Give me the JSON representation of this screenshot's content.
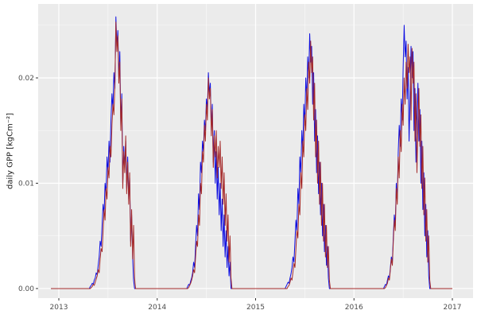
{
  "figure": {
    "background": "#FFFFFF",
    "panel_background": "#EBEBEB",
    "gridline_color": "#FFFFFF",
    "tick_color": "#333333",
    "tick_label_color": "#4D4D4D",
    "axis_title_color": "#1A1A1A"
  },
  "chart_data": {
    "type": "line",
    "title": "",
    "xlabel": "",
    "ylabel": "daily GPP [kgCm⁻²]",
    "legend": "none",
    "grid": true,
    "x_ticks": [
      2013,
      2014,
      2015,
      2016,
      2017
    ],
    "x_tick_labels": [
      "2013",
      "2014",
      "2015",
      "2016",
      "2017"
    ],
    "x_minor_ticks": [
      2013.5,
      2014.5,
      2015.5,
      2016.5
    ],
    "y_ticks": [
      0,
      0.01,
      0.02
    ],
    "y_tick_labels": [
      "0.00",
      "0.01",
      "0.02"
    ],
    "y_minor_ticks": [
      0.005,
      0.015,
      0.025
    ],
    "xlim": [
      2012.79,
      2017.21
    ],
    "ylim": [
      -0.00091,
      0.02702
    ],
    "x_unit": "year",
    "baseline_value": 0,
    "data_x_start": 2012.92,
    "data_x_end": 2017.0,
    "value_scale": 0.0001,
    "series": [
      {
        "name": "blue",
        "color": "#0F0FE0",
        "seasons": [
          {
            "x0": 2013.32,
            "dx": 0.01,
            "values": [
              2,
              3,
              5,
              4,
              8,
              10,
              15,
              13,
              22,
              30,
              45,
              40,
              60,
              80,
              70,
              100,
              90,
              125,
              110,
              140,
              120,
              160,
              185,
              170,
              205,
              190,
              258,
              230,
              245,
              200,
              225,
              155,
              185,
              100,
              135,
              115,
              140,
              95,
              125,
              85,
              105,
              45,
              70,
              30,
              8,
              0
            ]
          },
          {
            "x0": 2014.31,
            "dx": 0.01,
            "values": [
              2,
              4,
              3,
              7,
              10,
              15,
              25,
              20,
              40,
              60,
              50,
              90,
              75,
              120,
              110,
              140,
              130,
              160,
              150,
              180,
              170,
              205,
              185,
              195,
              150,
              175,
              120,
              150,
              100,
              130,
              85,
              115,
              70,
              100,
              55,
              85,
              40,
              70,
              30,
              55,
              20,
              40,
              12,
              25,
              0
            ]
          },
          {
            "x0": 2015.31,
            "dx": 0.01,
            "values": [
              2,
              4,
              6,
              5,
              10,
              14,
              20,
              30,
              25,
              45,
              65,
              55,
              95,
              80,
              125,
              110,
              150,
              130,
              175,
              155,
              200,
              180,
              220,
              200,
              242,
              215,
              230,
              175,
              205,
              140,
              170,
              110,
              145,
              90,
              120,
              70,
              100,
              50,
              80,
              35,
              60,
              22,
              40,
              10,
              0
            ]
          },
          {
            "x0": 2016.31,
            "dx": 0.01,
            "values": [
              2,
              4,
              3,
              8,
              12,
              10,
              20,
              30,
              25,
              50,
              70,
              60,
              100,
              85,
              130,
              155,
              135,
              180,
              160,
              210,
              250,
              220,
              235,
              180,
              210,
              140,
              180,
              230,
              200,
              225,
              150,
              190,
              120,
              160,
              195,
              140,
              170,
              100,
              140,
              75,
              110,
              50,
              80,
              30,
              55,
              12,
              0
            ]
          }
        ]
      },
      {
        "name": "darkred",
        "color": "#A52A2A",
        "seasons": [
          {
            "x0": 2013.33,
            "dx": 0.01,
            "values": [
              1,
              2,
              4,
              3,
              6,
              9,
              12,
              18,
              15,
              28,
              38,
              35,
              55,
              75,
              65,
              95,
              85,
              115,
              105,
              135,
              125,
              155,
              175,
              165,
              195,
              253,
              225,
              240,
              195,
              215,
              150,
              180,
              95,
              130,
              110,
              145,
              90,
              120,
              80,
              110,
              40,
              75,
              28,
              60,
              10,
              0
            ]
          },
          {
            "x0": 2014.32,
            "dx": 0.01,
            "values": [
              1,
              3,
              5,
              8,
              12,
              18,
              15,
              30,
              45,
              40,
              70,
              60,
              100,
              90,
              130,
              120,
              155,
              140,
              175,
              160,
              200,
              180,
              190,
              145,
              170,
              115,
              145,
              125,
              150,
              105,
              135,
              115,
              140,
              95,
              125,
              80,
              110,
              60,
              90,
              45,
              70,
              25,
              50,
              10,
              0
            ]
          },
          {
            "x0": 2015.33,
            "dx": 0.01,
            "values": [
              2,
              3,
              6,
              10,
              8,
              16,
              24,
              20,
              38,
              55,
              48,
              80,
              70,
              110,
              95,
              140,
              125,
              165,
              150,
              190,
              170,
              215,
              195,
              235,
              205,
              220,
              160,
              195,
              125,
              160,
              100,
              140,
              80,
              120,
              60,
              100,
              45,
              80,
              30,
              60,
              20,
              40,
              8,
              0
            ]
          },
          {
            "x0": 2016.32,
            "dx": 0.01,
            "values": [
              1,
              3,
              5,
              10,
              8,
              18,
              28,
              22,
              45,
              65,
              55,
              95,
              80,
              125,
              105,
              150,
              130,
              175,
              155,
              200,
              175,
              215,
              190,
              232,
              205,
              220,
              160,
              228,
              195,
              215,
              140,
              185,
              110,
              155,
              190,
              135,
              165,
              95,
              135,
              70,
              105,
              45,
              75,
              25,
              50,
              8,
              0
            ]
          }
        ]
      }
    ]
  }
}
